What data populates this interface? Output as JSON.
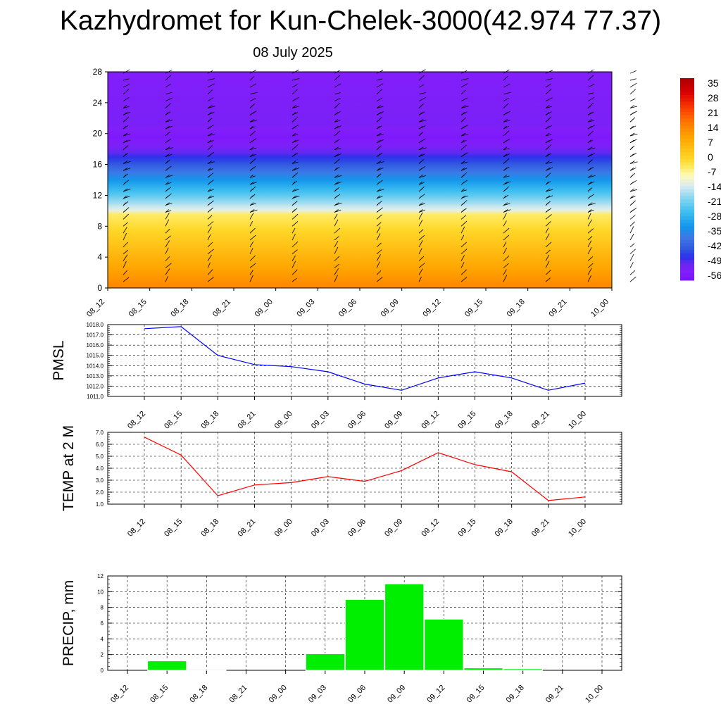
{
  "title": "Kazhydromet for Kun-Chelek-3000(42.974 77.37)",
  "subtitle": "08 July 2025",
  "chart_data": [
    {
      "type": "heatmap",
      "description_axis": "height_km",
      "x": [
        "08_12",
        "08_15",
        "08_18",
        "08_21",
        "09_00",
        "09_03",
        "09_06",
        "09_09",
        "09_12",
        "09_15",
        "09_18",
        "09_21",
        "10_00"
      ],
      "ylim": [
        0,
        28
      ],
      "yticks": [
        "0",
        "4",
        "8",
        "12",
        "16",
        "20",
        "24",
        "28"
      ],
      "colorbar": {
        "labels": [
          "35",
          "28",
          "21",
          "14",
          "7",
          "0",
          "-7",
          "-14",
          "-21",
          "-28",
          "-35",
          "-42",
          "-49",
          "-56"
        ],
        "range": [
          -60,
          35
        ]
      },
      "temperature_profile": [
        {
          "h": 0,
          "t": 12
        },
        {
          "h": 2,
          "t": 8
        },
        {
          "h": 6,
          "t": 0
        },
        {
          "h": 9.5,
          "t": -7
        },
        {
          "h": 10,
          "t": -14
        },
        {
          "h": 12,
          "t": -25
        },
        {
          "h": 14,
          "t": -35
        },
        {
          "h": 16,
          "t": -45
        },
        {
          "h": 18,
          "t": -54
        },
        {
          "h": 19.5,
          "t": -58
        },
        {
          "h": 21,
          "t": -55
        },
        {
          "h": 28,
          "t": -56
        }
      ],
      "wind_barbs": true
    },
    {
      "type": "line",
      "ylabel": "PMSL",
      "x": [
        "08_12",
        "08_15",
        "08_18",
        "08_21",
        "09_00",
        "09_03",
        "09_06",
        "09_09",
        "09_12",
        "09_15",
        "09_18",
        "09_21",
        "10_00"
      ],
      "ylim": [
        1011,
        1018
      ],
      "yticks": [
        "1011.0",
        "1012.0",
        "1013.0",
        "1014.0",
        "1015.0",
        "1016.0",
        "1017.0",
        "1018.0"
      ],
      "series": [
        {
          "values": [
            1017.6,
            1017.8,
            1015.0,
            1014.1,
            1013.9,
            1013.4,
            1012.2,
            1011.6,
            1012.8,
            1013.4,
            1012.8,
            1011.6,
            1012.3
          ],
          "color": "#0000ff"
        }
      ]
    },
    {
      "type": "line",
      "ylabel": "TEMP at 2 M",
      "x": [
        "08_12",
        "08_15",
        "08_18",
        "08_21",
        "09_00",
        "09_03",
        "09_06",
        "09_09",
        "09_12",
        "09_15",
        "09_18",
        "09_21",
        "10_00"
      ],
      "ylim": [
        1,
        7
      ],
      "yticks": [
        "1.0",
        "2.0",
        "3.0",
        "4.0",
        "5.0",
        "6.0",
        "7.0"
      ],
      "series": [
        {
          "values": [
            6.6,
            5.1,
            1.7,
            2.6,
            2.8,
            3.3,
            2.9,
            3.8,
            5.3,
            4.3,
            3.7,
            1.3,
            1.6
          ],
          "color": "#ff0000"
        }
      ]
    },
    {
      "type": "bar",
      "ylabel": "PRECIP, mm",
      "categories": [
        "08_12",
        "08_15",
        "08_18",
        "08_21",
        "09_00",
        "09_03",
        "09_06",
        "09_09",
        "09_12",
        "09_15",
        "09_18",
        "09_21",
        "10_00"
      ],
      "ylim": [
        0,
        12
      ],
      "yticks": [
        "0",
        "2",
        "4",
        "6",
        "8",
        "10",
        "12"
      ],
      "values": [
        0,
        1.2,
        0.1,
        0,
        0,
        2.1,
        9.0,
        11.0,
        6.5,
        0.3,
        0.2,
        0,
        0
      ],
      "color": "#00ee00"
    }
  ]
}
